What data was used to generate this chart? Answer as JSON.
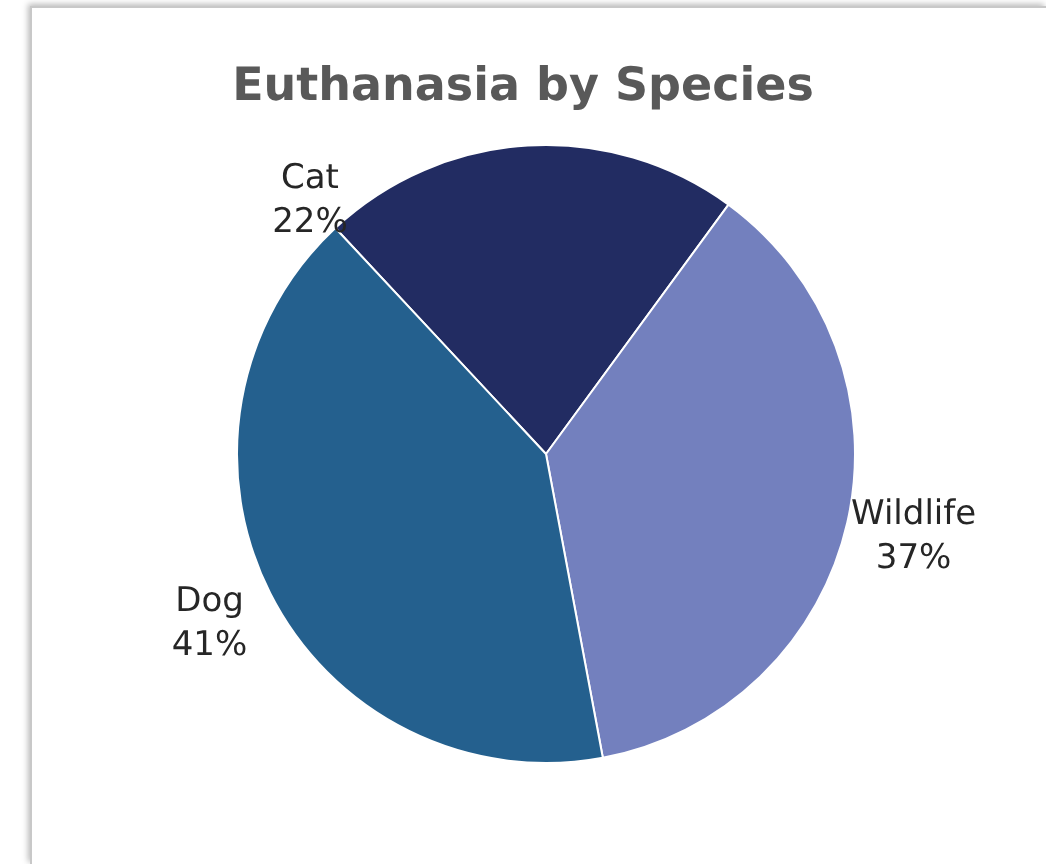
{
  "chart_data": {
    "type": "pie",
    "title": "Euthanasia by Species",
    "categories": [
      "Cat",
      "Wildlife",
      "Dog"
    ],
    "values": [
      22,
      37,
      41
    ],
    "colors": [
      "#222c62",
      "#7380be",
      "#24608e"
    ],
    "value_labels": [
      "22%",
      "37%",
      "41%"
    ],
    "legend": false
  }
}
